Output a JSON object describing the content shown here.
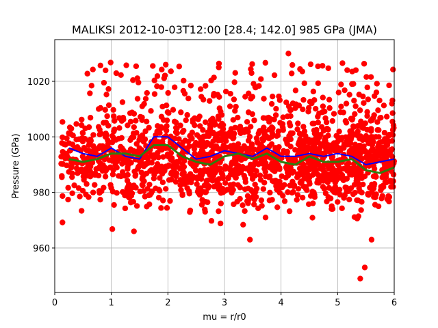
{
  "chart_data": {
    "type": "scatter",
    "title": "MALIKSI 2012-10-03T12:00 [28.4; 142.0] 985 GPa (JMA)",
    "xlabel": "mu = r/r0",
    "ylabel": "Pressure (GPa)",
    "xlim": [
      0,
      6
    ],
    "ylim": [
      944,
      1035
    ],
    "xticks": [
      "0",
      "1",
      "2",
      "3",
      "4",
      "5",
      "6"
    ],
    "yticks": [
      "960",
      "980",
      "1000",
      "1020"
    ],
    "xtick_values": [
      0,
      1,
      2,
      3,
      4,
      5,
      6
    ],
    "ytick_values": [
      960,
      980,
      1000,
      1020
    ],
    "grid": true,
    "colors": {
      "points": "#ff0000",
      "blue_line": "#0000ff",
      "green_line": "#2e7d0e"
    },
    "scatter": {
      "name": "",
      "n_points": 1800,
      "x_range": [
        0.1,
        6.0
      ],
      "y_band": [
        970,
        1010
      ],
      "outliers": [
        [
          5.4,
          949
        ],
        [
          5.48,
          953
        ],
        [
          5.6,
          963
        ],
        [
          4.13,
          1030
        ],
        [
          3.45,
          963
        ],
        [
          1.4,
          966
        ]
      ]
    },
    "series": [
      {
        "name": "",
        "color": "#0000ff",
        "x": [
          0.25,
          0.5,
          0.75,
          1.0,
          1.25,
          1.5,
          1.75,
          2.0,
          2.25,
          2.5,
          2.75,
          3.0,
          3.25,
          3.5,
          3.75,
          4.0,
          4.25,
          4.5,
          4.75,
          5.0,
          5.25,
          5.5,
          5.75,
          6.0
        ],
        "y": [
          996,
          994,
          993,
          996,
          993,
          992,
          1000,
          1000,
          996,
          992,
          993,
          995,
          994,
          993,
          996,
          993,
          993,
          994,
          993,
          994,
          993,
          990,
          991,
          992
        ]
      },
      {
        "name": "",
        "color": "#2e7d0e",
        "x": [
          0.25,
          0.5,
          0.75,
          1.0,
          1.25,
          1.5,
          1.75,
          2.0,
          2.25,
          2.5,
          2.75,
          3.0,
          3.25,
          3.5,
          3.75,
          4.0,
          4.25,
          4.5,
          4.75,
          5.0,
          5.25,
          5.5,
          5.75,
          6.0
        ],
        "y": [
          992,
          991,
          992,
          994,
          994,
          993,
          997,
          997,
          993,
          991,
          990,
          993,
          994,
          992,
          994,
          991,
          990,
          993,
          991,
          991,
          992,
          988,
          987,
          989
        ]
      }
    ]
  }
}
